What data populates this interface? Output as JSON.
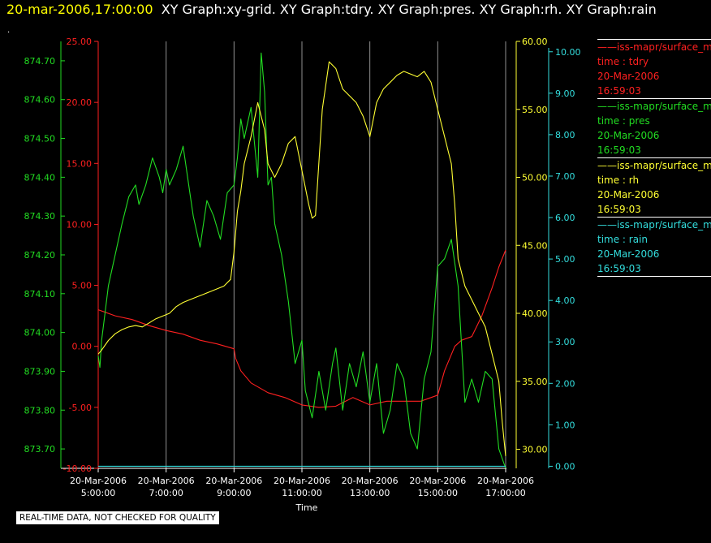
{
  "header": {
    "timestamp": "20-mar-2006,17:00:00",
    "graphs": "XY Graph:xy-grid.  XY Graph:tdry.  XY Graph:pres.  XY Graph:rh.  XY Graph:rain",
    "dot": "."
  },
  "note": "REAL-TIME DATA, NOT CHECKED FOR QUALITY",
  "legend": [
    {
      "name": "iss-mapr/surface_m",
      "field": "time : tdry",
      "date": "20-Mar-2006",
      "time": "16:59:03",
      "color": "#ff2020"
    },
    {
      "name": "iss-mapr/surface_m",
      "field": "time : pres",
      "date": "20-Mar-2006",
      "time": "16:59:03",
      "color": "#22dd22"
    },
    {
      "name": "iss-mapr/surface_m",
      "field": "time : rh",
      "date": "20-Mar-2006",
      "time": "16:59:03",
      "color": "#ffff33"
    },
    {
      "name": "iss-mapr/surface_m",
      "field": "time : rain",
      "date": "20-Mar-2006",
      "time": "16:59:03",
      "color": "#33dddd"
    }
  ],
  "chart_data": {
    "type": "line",
    "xlabel": "Time",
    "x_ticks": [
      {
        "date": "20-Mar-2006",
        "time": "5:00:00"
      },
      {
        "date": "20-Mar-2006",
        "time": "7:00:00"
      },
      {
        "date": "20-Mar-2006",
        "time": "9:00:00"
      },
      {
        "date": "20-Mar-2006",
        "time": "11:00:00"
      },
      {
        "date": "20-Mar-2006",
        "time": "13:00:00"
      },
      {
        "date": "20-Mar-2006",
        "time": "15:00:00"
      },
      {
        "date": "20-Mar-2006",
        "time": "17:00:00"
      }
    ],
    "x_range_hours": [
      5,
      17
    ],
    "grid": "vertical",
    "axes": {
      "tdry": {
        "color": "#ff2020",
        "range": [
          -10,
          25
        ],
        "ticks": [
          "25.00",
          "20.00",
          "15.00",
          "10.00",
          "5.00",
          "0.00",
          "-5.00",
          "-10.00"
        ]
      },
      "pres": {
        "color": "#22dd22",
        "range": [
          873.65,
          874.75
        ],
        "ticks": [
          "874.70",
          "874.60",
          "874.50",
          "874.40",
          "874.30",
          "874.20",
          "874.10",
          "874.00",
          "873.90",
          "873.80",
          "873.70"
        ]
      },
      "rh": {
        "color": "#ffff33",
        "range": [
          28.6,
          60
        ],
        "ticks": [
          "60.00",
          "55.00",
          "50.00",
          "45.00",
          "40.00",
          "35.00",
          "30.00"
        ]
      },
      "rain": {
        "color": "#33dddd",
        "range": [
          -0.05,
          10.25
        ],
        "ticks": [
          "10.00",
          "9.00",
          "8.00",
          "7.00",
          "6.00",
          "5.00",
          "4.00",
          "3.00",
          "2.00",
          "1.00",
          "0.00"
        ]
      }
    },
    "series": [
      {
        "name": "tdry",
        "color": "#ff2020",
        "x": [
          5.0,
          5.5,
          6.0,
          6.5,
          7.0,
          7.5,
          8.0,
          8.5,
          9.0,
          9.05,
          9.2,
          9.5,
          10.0,
          10.5,
          11.0,
          11.5,
          12.0,
          12.5,
          13.0,
          13.5,
          14.0,
          14.5,
          15.0,
          15.2,
          15.5,
          15.7,
          16.0,
          16.3,
          16.6,
          16.8,
          17.0
        ],
        "y": [
          3.0,
          2.5,
          2.2,
          1.7,
          1.3,
          1.0,
          0.5,
          0.2,
          -0.2,
          -1.0,
          -2.0,
          -3.0,
          -3.8,
          -4.2,
          -4.8,
          -5.0,
          -4.9,
          -4.2,
          -4.8,
          -4.5,
          -4.5,
          -4.5,
          -4.0,
          -2.0,
          0.0,
          0.5,
          0.8,
          2.5,
          4.8,
          6.5,
          7.9
        ]
      },
      {
        "name": "pres",
        "color": "#22dd22",
        "x": [
          5.0,
          5.05,
          5.1,
          5.2,
          5.3,
          5.5,
          5.7,
          5.9,
          6.1,
          6.2,
          6.4,
          6.6,
          6.8,
          6.9,
          7.0,
          7.1,
          7.3,
          7.5,
          7.7,
          7.8,
          7.9,
          8.0,
          8.2,
          8.4,
          8.6,
          8.8,
          9.0,
          9.1,
          9.2,
          9.3,
          9.5,
          9.7,
          9.8,
          9.9,
          10.0,
          10.1,
          10.2,
          10.4,
          10.6,
          10.8,
          11.0,
          11.1,
          11.3,
          11.5,
          11.7,
          11.9,
          12.0,
          12.2,
          12.4,
          12.6,
          12.8,
          13.0,
          13.2,
          13.4,
          13.6,
          13.8,
          14.0,
          14.2,
          14.4,
          14.6,
          14.8,
          15.0,
          15.2,
          15.4,
          15.6,
          15.8,
          16.0,
          16.2,
          16.4,
          16.6,
          16.8,
          17.0
        ],
        "y": [
          873.94,
          873.91,
          873.98,
          874.05,
          874.12,
          874.2,
          874.28,
          874.35,
          874.38,
          874.33,
          874.38,
          874.45,
          874.4,
          874.36,
          874.42,
          874.38,
          874.42,
          874.48,
          874.36,
          874.3,
          874.26,
          874.22,
          874.34,
          874.3,
          874.24,
          874.36,
          874.38,
          874.45,
          874.55,
          874.5,
          874.58,
          874.4,
          874.72,
          874.62,
          874.38,
          874.4,
          874.28,
          874.2,
          874.08,
          873.92,
          873.98,
          873.85,
          873.78,
          873.9,
          873.8,
          873.92,
          873.96,
          873.8,
          873.92,
          873.86,
          873.95,
          873.82,
          873.92,
          873.74,
          873.8,
          873.92,
          873.88,
          873.74,
          873.7,
          873.88,
          873.95,
          874.17,
          874.19,
          874.24,
          874.12,
          873.82,
          873.88,
          873.82,
          873.9,
          873.88,
          873.7,
          873.65
        ]
      },
      {
        "name": "rh",
        "color": "#ffff33",
        "x": [
          5.0,
          5.1,
          5.3,
          5.5,
          5.7,
          5.9,
          6.1,
          6.3,
          6.5,
          6.7,
          6.9,
          7.1,
          7.3,
          7.5,
          7.7,
          7.9,
          8.1,
          8.3,
          8.5,
          8.7,
          8.9,
          9.0,
          9.1,
          9.2,
          9.3,
          9.5,
          9.7,
          9.9,
          10.0,
          10.2,
          10.4,
          10.6,
          10.8,
          11.0,
          11.2,
          11.3,
          11.4,
          11.6,
          11.8,
          12.0,
          12.2,
          12.4,
          12.6,
          12.8,
          13.0,
          13.2,
          13.4,
          13.6,
          13.8,
          14.0,
          14.2,
          14.4,
          14.6,
          14.8,
          15.0,
          15.2,
          15.4,
          15.5,
          15.6,
          15.8,
          16.0,
          16.1,
          16.2,
          16.4,
          16.6,
          16.8,
          16.9,
          17.0
        ],
        "y": [
          37.0,
          37.3,
          38.0,
          38.5,
          38.8,
          39.0,
          39.1,
          39.0,
          39.3,
          39.6,
          39.8,
          40.0,
          40.5,
          40.8,
          41.0,
          41.2,
          41.4,
          41.6,
          41.8,
          42.0,
          42.5,
          44.5,
          47.5,
          49.0,
          51.0,
          53.0,
          55.5,
          53.5,
          51.0,
          50.0,
          51.0,
          52.5,
          53.0,
          50.5,
          48.0,
          47.0,
          47.2,
          55.0,
          58.5,
          58.0,
          56.5,
          56.0,
          55.5,
          54.5,
          53.0,
          55.5,
          56.5,
          57.0,
          57.5,
          57.8,
          57.6,
          57.4,
          57.8,
          57.0,
          55.0,
          53.0,
          51.0,
          48.0,
          44.0,
          42.0,
          41.0,
          40.5,
          40.0,
          39.0,
          37.0,
          35.0,
          32.0,
          29.5
        ]
      },
      {
        "name": "rain",
        "color": "#33dddd",
        "x": [
          5.0,
          17.0
        ],
        "y": [
          0.0,
          0.0
        ]
      }
    ]
  }
}
